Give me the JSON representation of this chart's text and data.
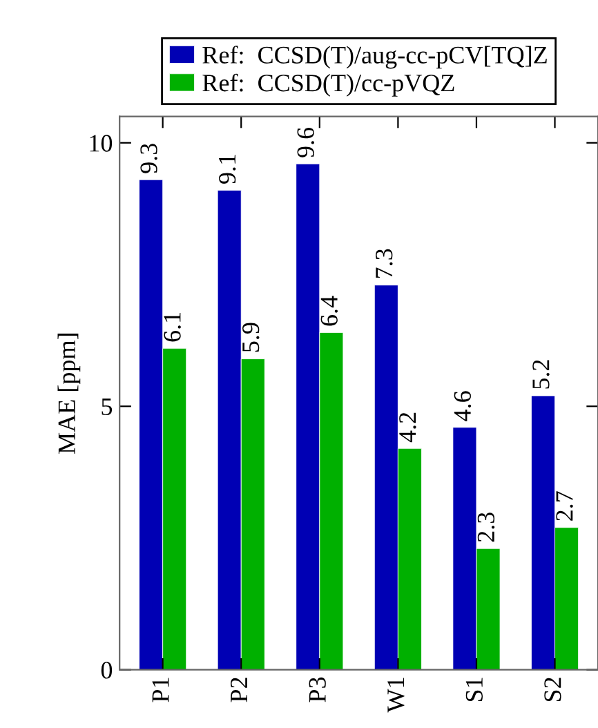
{
  "chart_data": {
    "type": "bar",
    "ylabel": "MAE [ppm]",
    "categories": [
      "P1",
      "P2",
      "P3",
      "W1",
      "S1",
      "S2"
    ],
    "series": [
      {
        "name": "Ref:  CCSD(T)/aug-cc-pCV[TQ]Z",
        "color": "#0000b4",
        "values": [
          9.3,
          9.1,
          9.6,
          7.3,
          4.6,
          5.2
        ]
      },
      {
        "name": "Ref:  CCSD(T)/cc-pVQZ",
        "color": "#00b000",
        "values": [
          6.1,
          5.9,
          6.4,
          4.2,
          2.3,
          2.7
        ]
      }
    ],
    "ylim": [
      0,
      10.5
    ],
    "yticks": [
      0,
      5,
      10
    ],
    "data_labels": true,
    "legend": "top",
    "grid": false
  }
}
